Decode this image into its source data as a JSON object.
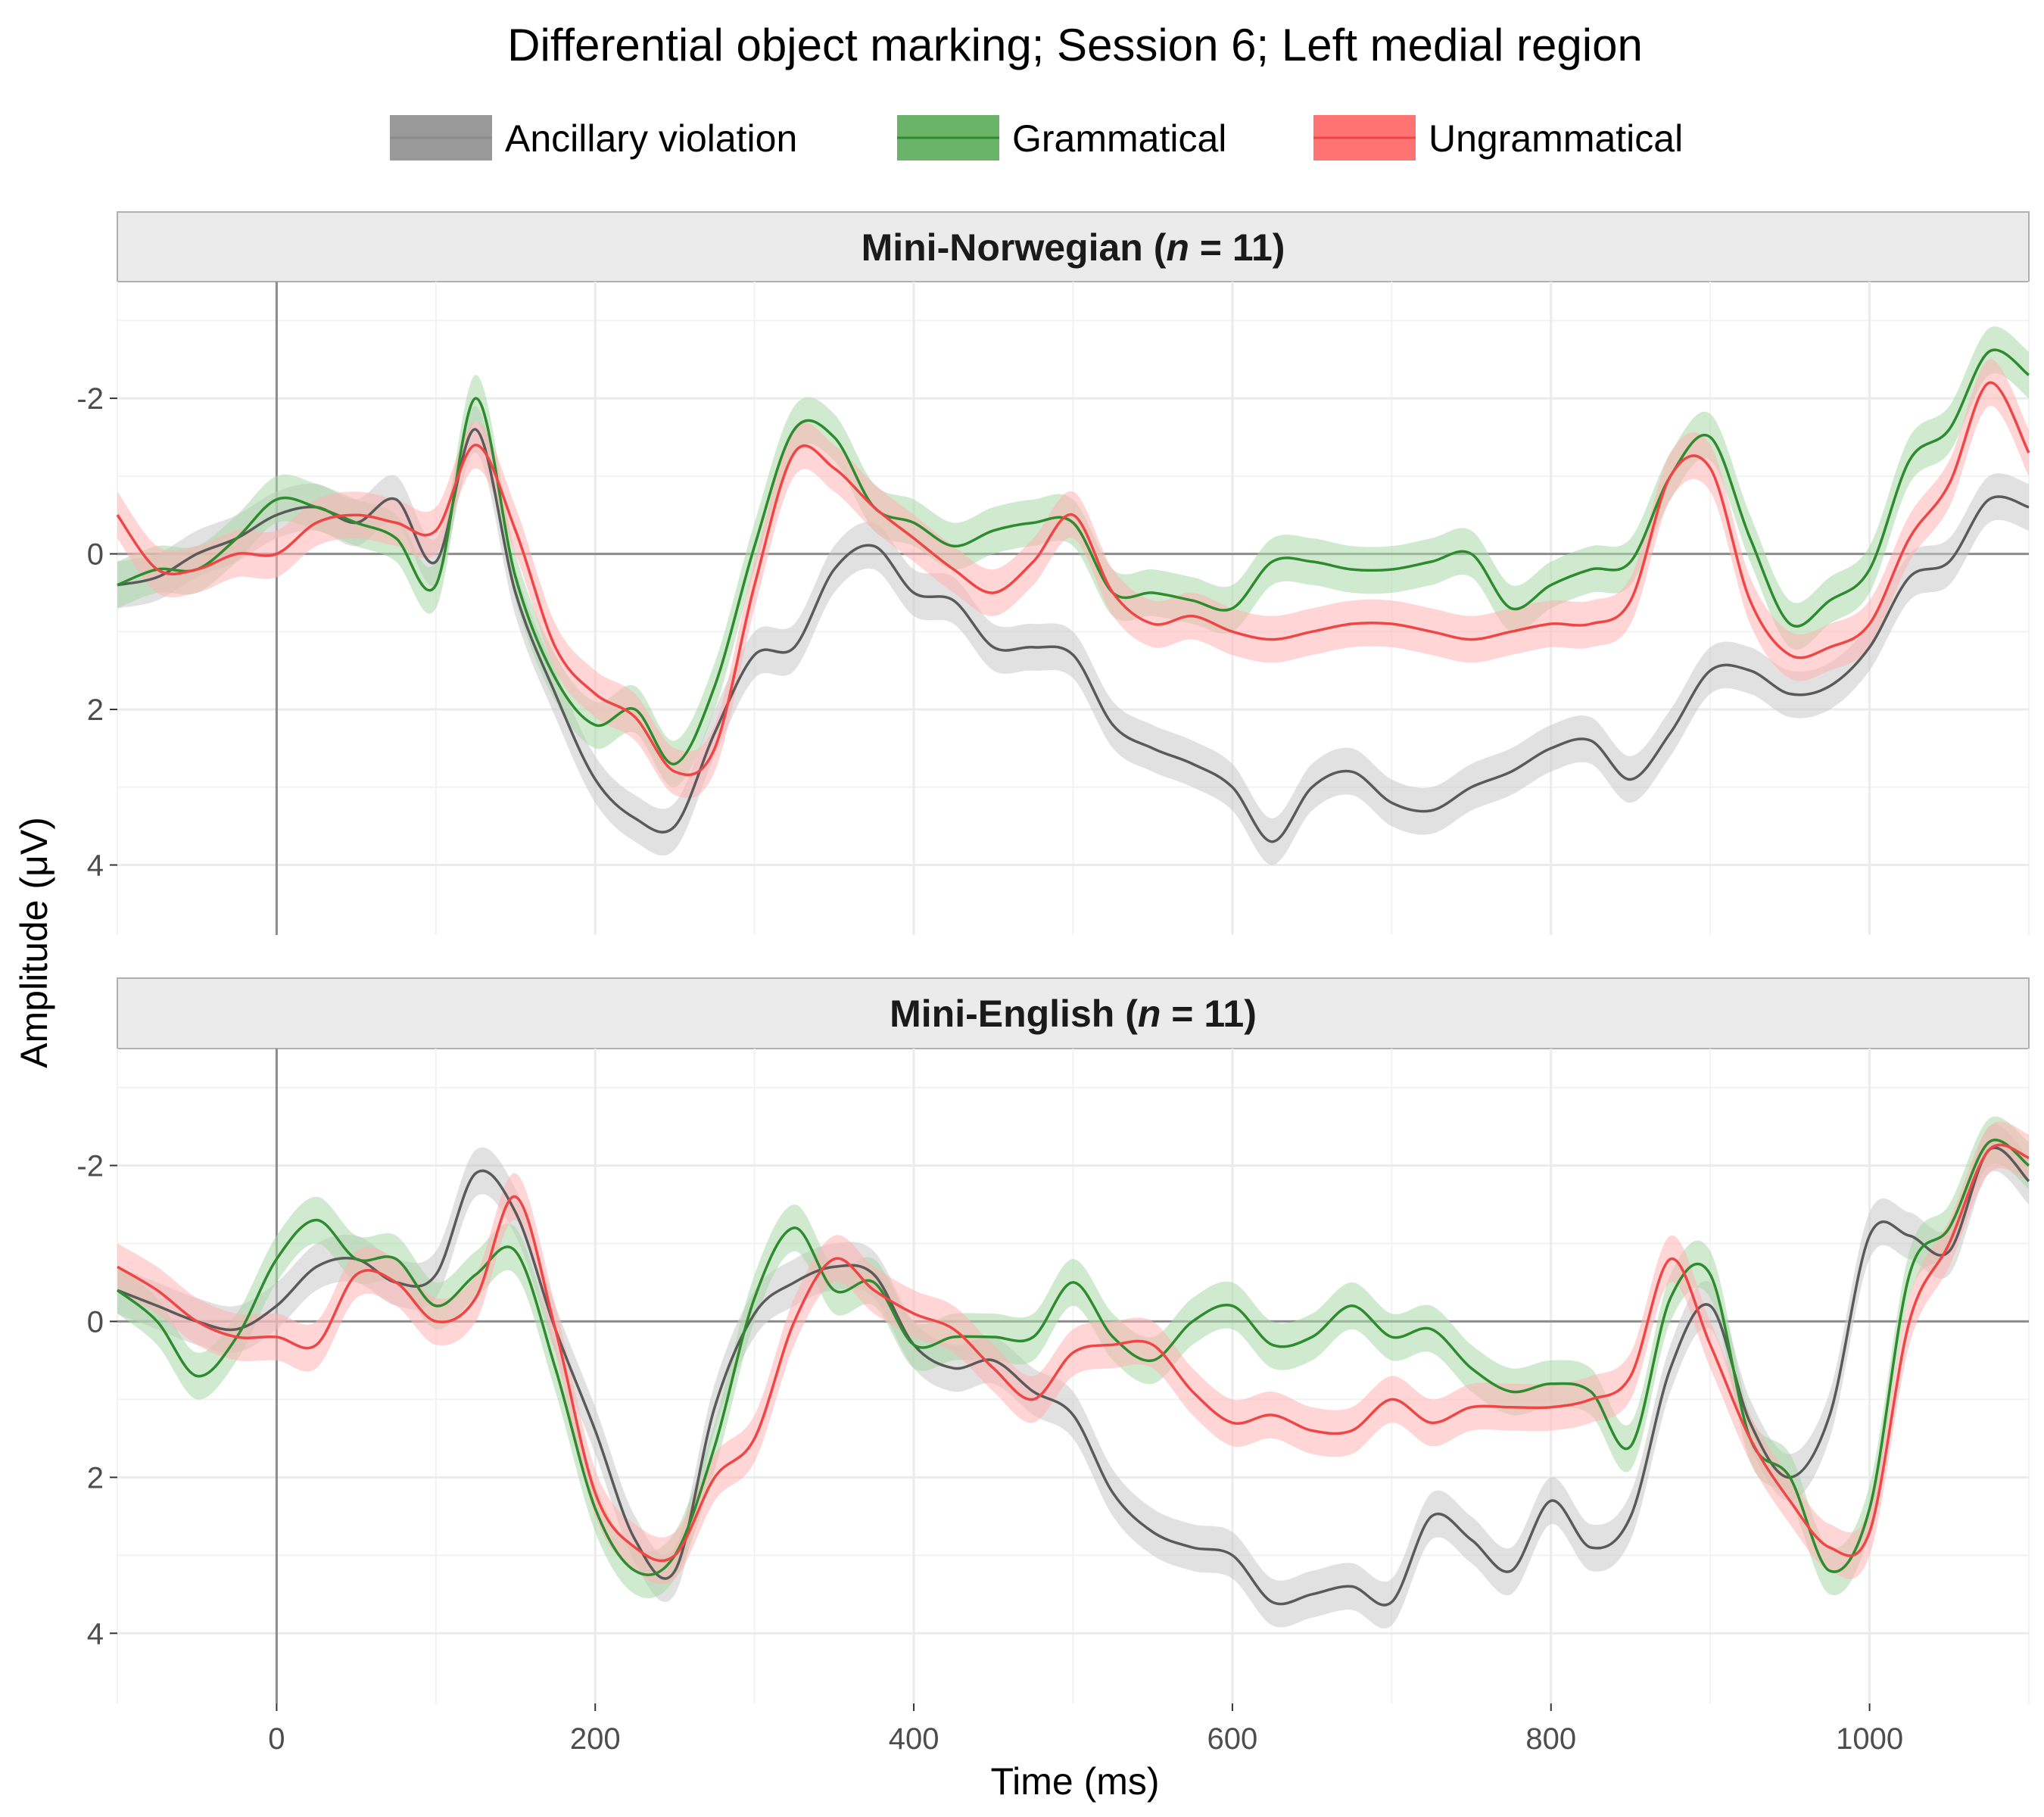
{
  "colors": {
    "ancillary": "#5a5a5a",
    "grammatical": "#2e8b2e",
    "ungrammatical": "#f04545",
    "ribbon_ancillary": "#c8c8c8",
    "ribbon_grammatical": "#a8d8a8",
    "ribbon_ungrammatical": "#ffb3b3",
    "strip_bg": "#ebebeb",
    "grid": "#ebebeb"
  },
  "chart_data": {
    "type": "line",
    "title": "Differential object marking; Session 6; Left medial region",
    "xlabel": "Time (ms)",
    "ylabel": "Amplitude (μV)",
    "xlim": [
      -100,
      1100
    ],
    "ylim": [
      4.9,
      -3.5
    ],
    "y_reversed": true,
    "x_ticks": [
      "0",
      "200",
      "400",
      "600",
      "800",
      "1000"
    ],
    "y_ticks": [
      "-2",
      "0",
      "2",
      "4"
    ],
    "legend_position": "top",
    "legend": [
      "Ancillary violation",
      "Grammatical",
      "Ungrammatical"
    ],
    "x": [
      -100,
      -75,
      -50,
      -25,
      0,
      25,
      50,
      75,
      100,
      125,
      150,
      175,
      200,
      225,
      250,
      275,
      300,
      325,
      350,
      375,
      400,
      425,
      450,
      475,
      500,
      525,
      550,
      575,
      600,
      625,
      650,
      675,
      700,
      725,
      750,
      775,
      800,
      825,
      850,
      875,
      900,
      925,
      950,
      975,
      1000,
      1025,
      1050,
      1075,
      1100
    ],
    "panels": [
      {
        "title_prefix": "Mini-Norwegian (",
        "title_n": "n",
        "title_suffix": " = 11)",
        "series": [
          {
            "name": "Ancillary violation",
            "key": "ancillary",
            "se": 0.3,
            "values": [
              0.4,
              0.3,
              0.0,
              -0.2,
              -0.5,
              -0.6,
              -0.4,
              -0.7,
              0.1,
              -1.6,
              0.5,
              1.8,
              2.9,
              3.4,
              3.5,
              2.3,
              1.3,
              1.2,
              0.2,
              -0.1,
              0.5,
              0.6,
              1.2,
              1.2,
              1.3,
              2.2,
              2.5,
              2.7,
              3.0,
              3.7,
              3.0,
              2.8,
              3.2,
              3.3,
              3.0,
              2.8,
              2.5,
              2.4,
              2.9,
              2.3,
              1.5,
              1.5,
              1.8,
              1.7,
              1.2,
              0.3,
              0.1,
              -0.7,
              -0.6
            ]
          },
          {
            "name": "Grammatical",
            "key": "grammatical",
            "se": 0.3,
            "values": [
              0.4,
              0.2,
              0.2,
              -0.2,
              -0.7,
              -0.6,
              -0.4,
              -0.2,
              0.4,
              -2.0,
              0.3,
              1.6,
              2.2,
              2.0,
              2.7,
              1.7,
              -0.1,
              -1.6,
              -1.5,
              -0.6,
              -0.4,
              -0.1,
              -0.3,
              -0.4,
              -0.4,
              0.5,
              0.5,
              0.6,
              0.7,
              0.1,
              0.1,
              0.2,
              0.2,
              0.1,
              0.0,
              0.7,
              0.4,
              0.2,
              0.1,
              -1.0,
              -1.5,
              -0.2,
              0.9,
              0.6,
              0.2,
              -1.2,
              -1.6,
              -2.6,
              -2.3
            ]
          },
          {
            "name": "Ungrammatical",
            "key": "ungrammatical",
            "se": 0.3,
            "values": [
              -0.5,
              0.2,
              0.2,
              0.0,
              0.0,
              -0.4,
              -0.5,
              -0.4,
              -0.3,
              -1.4,
              -0.3,
              1.2,
              1.8,
              2.1,
              2.8,
              2.5,
              0.4,
              -1.3,
              -1.1,
              -0.6,
              -0.2,
              0.2,
              0.5,
              0.1,
              -0.5,
              0.5,
              0.9,
              0.8,
              1.0,
              1.1,
              1.0,
              0.9,
              0.9,
              1.0,
              1.1,
              1.0,
              0.9,
              0.9,
              0.6,
              -1.0,
              -1.1,
              0.6,
              1.3,
              1.2,
              0.9,
              -0.2,
              -0.9,
              -2.2,
              -1.3
            ]
          }
        ]
      },
      {
        "title_prefix": "Mini-English (",
        "title_n": "n",
        "title_suffix": " = 11)",
        "series": [
          {
            "name": "Ancillary violation",
            "key": "ancillary",
            "se": 0.3,
            "values": [
              -0.4,
              -0.2,
              0.0,
              0.1,
              -0.2,
              -0.7,
              -0.8,
              -0.5,
              -0.6,
              -1.9,
              -1.4,
              0.1,
              1.4,
              2.8,
              3.2,
              1.1,
              -0.1,
              -0.5,
              -0.7,
              -0.6,
              0.3,
              0.6,
              0.5,
              0.9,
              1.2,
              2.2,
              2.7,
              2.9,
              3.0,
              3.6,
              3.5,
              3.4,
              3.6,
              2.5,
              2.8,
              3.2,
              2.3,
              2.9,
              2.5,
              0.6,
              -0.2,
              1.3,
              2.0,
              1.2,
              -1.1,
              -1.1,
              -0.9,
              -2.2,
              -1.8
            ]
          },
          {
            "name": "Grammatical",
            "key": "grammatical",
            "se": 0.3,
            "values": [
              -0.4,
              0.0,
              0.7,
              0.2,
              -0.8,
              -1.3,
              -0.8,
              -0.8,
              -0.2,
              -0.6,
              -0.9,
              0.6,
              2.4,
              3.2,
              3.0,
              1.6,
              -0.3,
              -1.2,
              -0.4,
              -0.5,
              0.3,
              0.2,
              0.2,
              0.2,
              -0.5,
              0.2,
              0.5,
              0.0,
              -0.2,
              0.3,
              0.2,
              -0.2,
              0.2,
              0.1,
              0.6,
              0.9,
              0.8,
              0.9,
              1.6,
              -0.3,
              -0.6,
              1.5,
              2.0,
              3.2,
              2.4,
              -0.6,
              -1.2,
              -2.3,
              -2.0
            ]
          },
          {
            "name": "Ungrammatical",
            "key": "ungrammatical",
            "se": 0.3,
            "values": [
              -0.7,
              -0.4,
              0.0,
              0.2,
              0.2,
              0.3,
              -0.6,
              -0.5,
              0.0,
              -0.3,
              -1.6,
              0.1,
              2.2,
              2.9,
              3.0,
              2.0,
              1.5,
              0.0,
              -0.8,
              -0.4,
              -0.1,
              0.1,
              0.6,
              1.0,
              0.4,
              0.3,
              0.3,
              0.9,
              1.3,
              1.2,
              1.4,
              1.4,
              1.0,
              1.3,
              1.1,
              1.1,
              1.1,
              1.0,
              0.7,
              -0.8,
              0.3,
              1.5,
              2.3,
              2.9,
              2.7,
              0.0,
              -1.0,
              -2.2,
              -2.1
            ]
          }
        ]
      }
    ]
  }
}
